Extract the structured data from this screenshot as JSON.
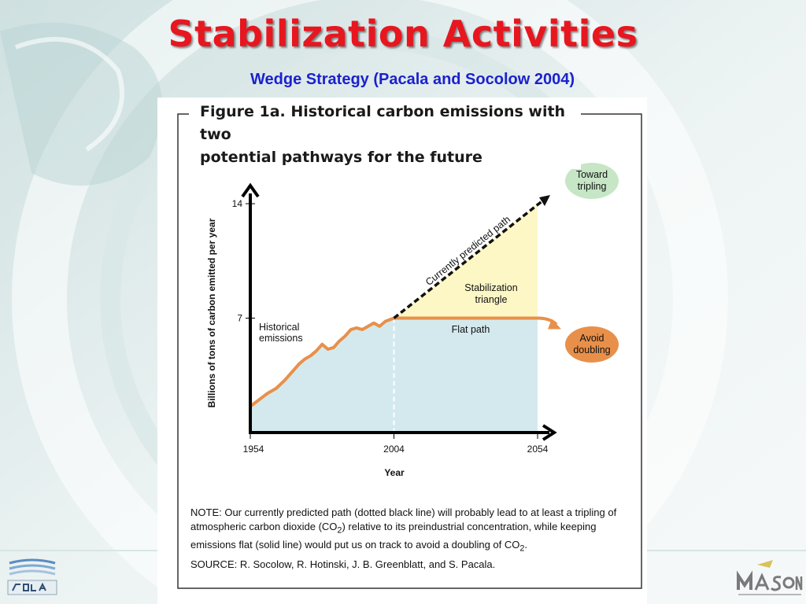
{
  "slide": {
    "title": "Stabilization Activities",
    "subtitle": "Wedge Strategy (Pacala and Socolow 2004)"
  },
  "figure": {
    "caption_line1": "Figure 1a. Historical carbon emissions with two",
    "caption_line2": "potential pathways for the future",
    "note_prefix": "NOTE: Our currently predicted path (dotted black line) will probably lead to at least a tripling of atmospheric carbon dioxide (CO",
    "note_sub1": "2",
    "note_middle": ") relative to its preindustrial concentration, while keeping emissions flat (solid line) would put us on track to avoid a doubling of CO",
    "note_sub2": "2",
    "note_suffix": ".",
    "source": "SOURCE: R. Socolow, R. Hotinski, J. B. Greenblatt, and S. Pacala."
  },
  "chart_data": {
    "type": "area",
    "title": "Figure 1a. Historical carbon emissions with two potential pathways for the future",
    "xlabel": "Year",
    "ylabel": "Billions of tons of carbon emitted per year",
    "xlim": [
      1954,
      2054
    ],
    "ylim": [
      0,
      14
    ],
    "x_ticks": [
      "1954",
      "2004",
      "2054"
    ],
    "y_ticks": [
      "7",
      "14"
    ],
    "series": [
      {
        "name": "Historical emissions",
        "x": [
          1954,
          1957,
          1960,
          1963,
          1966,
          1969,
          1971,
          1973,
          1975,
          1977,
          1979,
          1981,
          1983,
          1985,
          1987,
          1989,
          1991,
          1993,
          1995,
          1997,
          1999,
          2001,
          2004
        ],
        "y": [
          1.6,
          2.0,
          2.4,
          2.7,
          3.2,
          3.8,
          4.2,
          4.5,
          4.7,
          5.0,
          5.4,
          5.1,
          5.2,
          5.6,
          5.9,
          6.3,
          6.4,
          6.3,
          6.5,
          6.7,
          6.5,
          6.8,
          7.0
        ]
      },
      {
        "name": "Currently predicted path",
        "x": [
          2004,
          2054
        ],
        "y": [
          7.0,
          14.0
        ]
      },
      {
        "name": "Flat path",
        "x": [
          2004,
          2054
        ],
        "y": [
          7.0,
          7.0
        ]
      }
    ],
    "annotations": {
      "historical_line1": "Historical",
      "historical_line2": "emissions",
      "stabilization_line1": "Stabilization",
      "stabilization_line2": "triangle",
      "flat_path": "Flat path",
      "predicted_path": "Currently predicted path",
      "tripling_line1": "Toward",
      "tripling_line2": "tripling",
      "doubling_line1": "Avoid",
      "doubling_line2": "doubling"
    },
    "colors": {
      "historical_fill": "#d3e9ed",
      "triangle_fill": "#fdf7c6",
      "flat_line": "#e8904a",
      "predicted_line": "#111111",
      "tripling_badge": "#c6e6c6",
      "doubling_badge": "#e8904a"
    }
  }
}
